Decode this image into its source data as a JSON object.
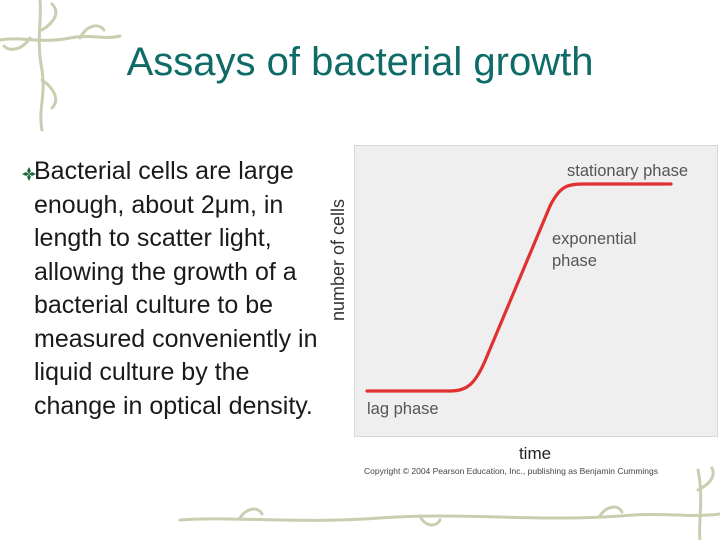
{
  "slide": {
    "title": "Assays of bacterial growth",
    "bullet_icon": "diamond-bullet-icon",
    "bullet_text": "Bacterial cells are large enough, about 2μm, in length to scatter light, allowing the growth of a bacterial culture to be measured conveniently in liquid culture by the change in optical density."
  },
  "figure": {
    "ylabel": "number of cells",
    "xlabel": "time",
    "copyright": "Copyright © 2004 Pearson Education, Inc., publishing as Benjamin Cummings",
    "annotations": {
      "stationary": "stationary phase",
      "exponential_line1": "exponential",
      "exponential_line2": "phase",
      "lag": "lag phase"
    },
    "curve_color": "#e03030"
  },
  "colors": {
    "title": "#0e6b66",
    "vine": "#c8cfb0"
  }
}
